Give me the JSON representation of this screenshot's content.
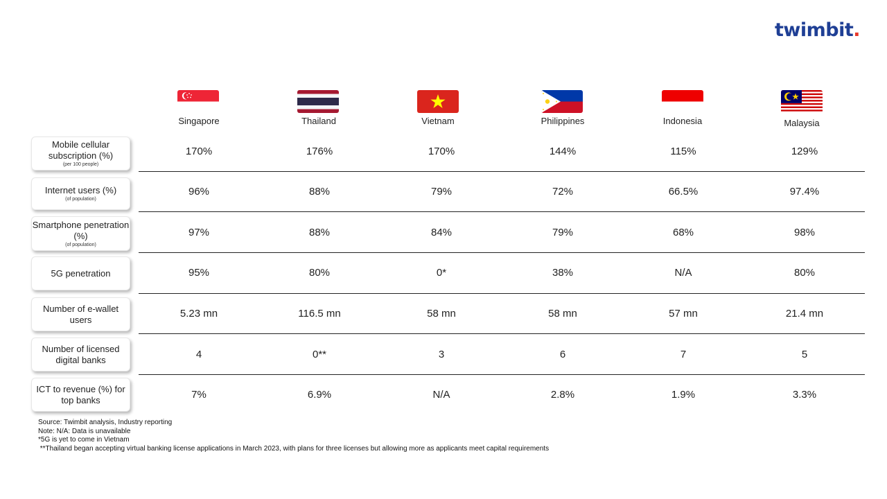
{
  "brand": {
    "logo_text": "twimbit",
    "brand_color": "#1f3f95",
    "dot_color": "#e8392b"
  },
  "countries": [
    "Singapore",
    "Thailand",
    "Vietnam",
    "Philippines",
    "Indonesia",
    "Malaysia"
  ],
  "rows": [
    {
      "label": "Mobile cellular subscription (%)",
      "sublabel": "(per 100 people)",
      "values": [
        "170%",
        "176%",
        "170%",
        "144%",
        "115%",
        "129%"
      ]
    },
    {
      "label": "Internet users (%)",
      "sublabel": "(of population)",
      "values": [
        "96%",
        "88%",
        "79%",
        "72%",
        "66.5%",
        "97.4%"
      ]
    },
    {
      "label": "Smartphone penetration (%)",
      "sublabel": "(of population)",
      "values": [
        "97%",
        "88%",
        "84%",
        "79%",
        "68%",
        "98%"
      ]
    },
    {
      "label": "5G penetration",
      "sublabel": "",
      "values": [
        "95%",
        "80%",
        "0*",
        "38%",
        "N/A",
        "80%"
      ]
    },
    {
      "label": "Number of e-wallet users",
      "sublabel": "",
      "values": [
        "5.23 mn",
        "116.5 mn",
        "58 mn",
        "58 mn",
        "57 mn",
        "21.4 mn"
      ]
    },
    {
      "label": "Number of licensed digital banks",
      "sublabel": "",
      "values": [
        "4",
        "0**",
        "3",
        "6",
        "7",
        "5"
      ]
    },
    {
      "label": "ICT to revenue (%) for top banks",
      "sublabel": "",
      "values": [
        "7%",
        "6.9%",
        "N/A",
        "2.8%",
        "1.9%",
        "3.3%"
      ]
    }
  ],
  "notes": [
    "Source: Twimbit analysis, Industry reporting",
    "Note: N/A: Data is unavailable",
    "*5G is yet to come in Vietnam",
    " **Thailand began accepting virtual banking license applications in March 2023, with plans for three licenses but allowing more as applicants meet capital requirements"
  ]
}
